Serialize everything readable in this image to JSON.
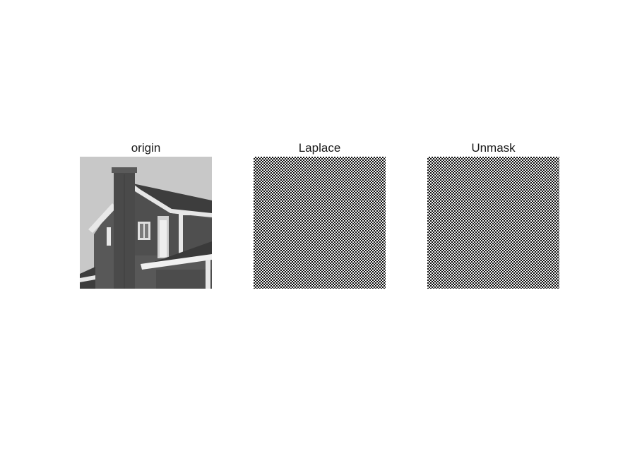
{
  "figure": {
    "panels": [
      {
        "title": "origin",
        "image": "house-grayscale-photo"
      },
      {
        "title": "Laplace",
        "image": "laplacian-filtered-checker-noise"
      },
      {
        "title": "Unmask",
        "image": "unsharp-mask-checker-noise"
      }
    ]
  }
}
